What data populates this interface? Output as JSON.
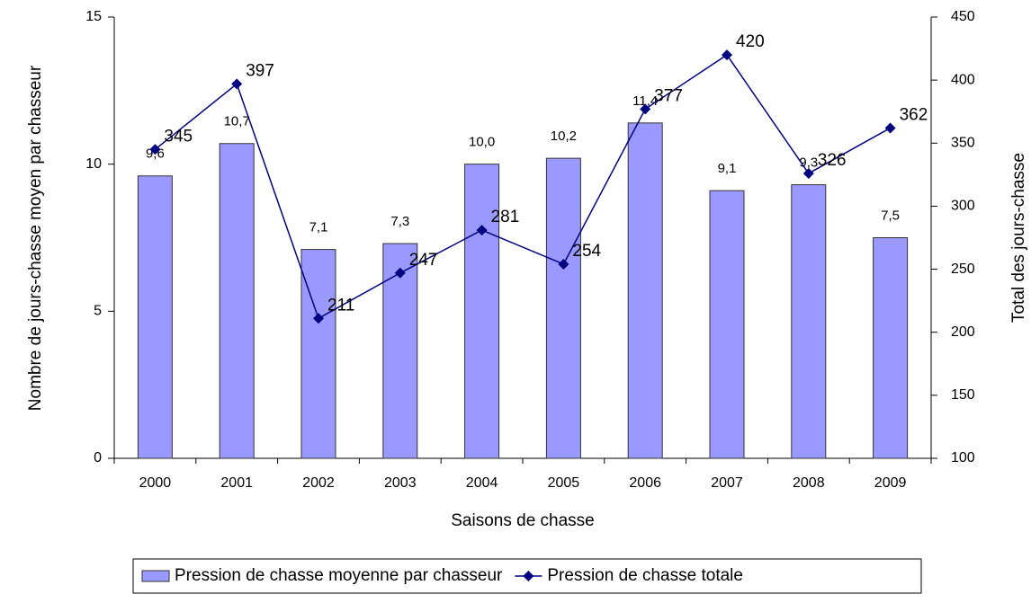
{
  "chart_data": {
    "type": "bar-line",
    "xlabel": "Saisons de chasse",
    "ylabel": "Nombre de jours-chasse moyen par chasseur",
    "y2label": "Total des jours-chasse",
    "categories": [
      "2000",
      "2001",
      "2002",
      "2003",
      "2004",
      "2005",
      "2006",
      "2007",
      "2008",
      "2009"
    ],
    "series": [
      {
        "name": "Pression de chasse moyenne par chasseur",
        "type": "bar",
        "color": "#9999ff",
        "values": [
          9.6,
          10.7,
          7.1,
          7.3,
          10.0,
          10.2,
          11.4,
          9.1,
          9.3,
          7.5
        ],
        "value_labels": [
          "9,6",
          "10,7",
          "7,1",
          "7,3",
          "10,0",
          "10,2",
          "11,4",
          "9,1",
          "9,3",
          "7,5"
        ]
      },
      {
        "name": "Pression de chasse totale",
        "type": "line",
        "color": "#000080",
        "axis": "y2",
        "values": [
          345,
          397,
          211,
          247,
          281,
          254,
          377,
          420,
          326,
          362
        ]
      }
    ],
    "ylim": [
      0,
      15
    ],
    "yticks": [
      0,
      5,
      10,
      15
    ],
    "y2lim": [
      100,
      450
    ],
    "y2ticks": [
      100,
      150,
      200,
      250,
      300,
      350,
      400,
      450
    ],
    "legend": "bottom"
  }
}
